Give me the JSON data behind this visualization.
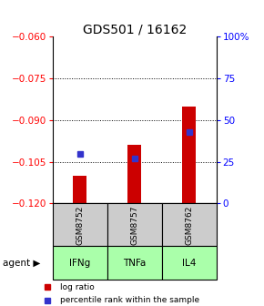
{
  "title": "GDS501 / 16162",
  "samples": [
    "GSM8752",
    "GSM8757",
    "GSM8762"
  ],
  "agents": [
    "IFNg",
    "TNFa",
    "IL4"
  ],
  "log_ratios": [
    -0.11,
    -0.099,
    -0.085
  ],
  "percentile_ranks": [
    30,
    27,
    43
  ],
  "ylim_left": [
    -0.12,
    -0.06
  ],
  "ylim_right": [
    0,
    100
  ],
  "yticks_left": [
    -0.12,
    -0.105,
    -0.09,
    -0.075,
    -0.06
  ],
  "yticks_right": [
    0,
    25,
    50,
    75,
    100
  ],
  "bar_color": "#cc0000",
  "dot_color": "#3333cc",
  "agent_colors": [
    "#aaffaa",
    "#aaffaa",
    "#aaffaa"
  ],
  "sample_box_color": "#cccccc",
  "legend_bar_label": "log ratio",
  "legend_dot_label": "percentile rank within the sample",
  "bar_width": 0.25
}
